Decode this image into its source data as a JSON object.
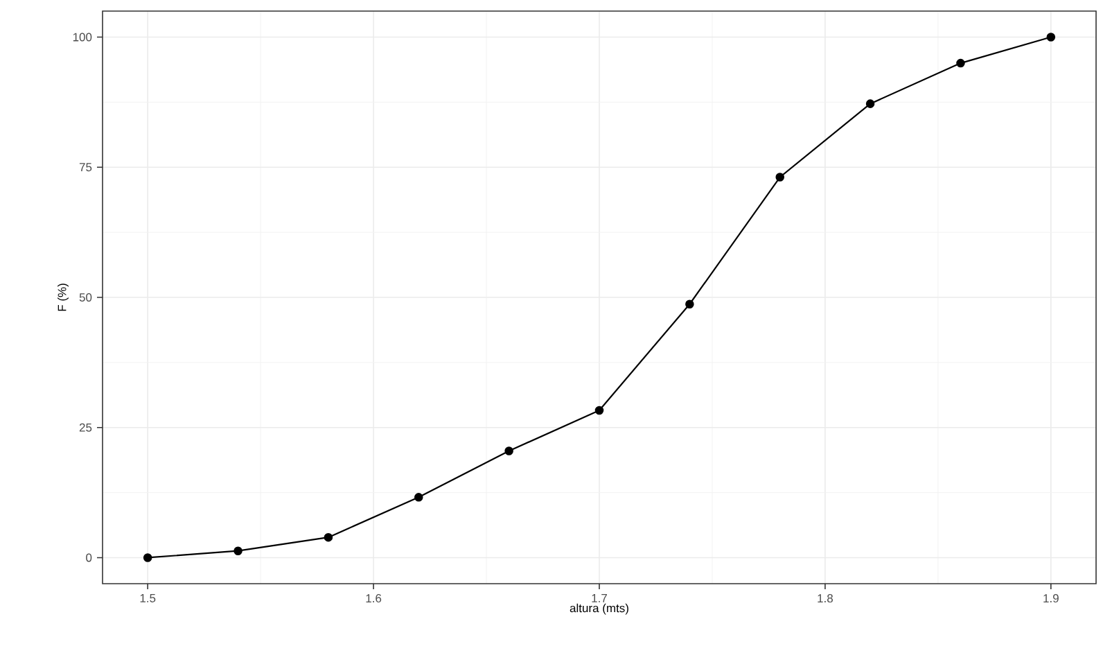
{
  "chart_data": {
    "type": "line",
    "xlabel": "altura (mts)",
    "ylabel": "F (%)",
    "x": [
      1.5,
      1.54,
      1.58,
      1.62,
      1.66,
      1.7,
      1.74,
      1.78,
      1.82,
      1.86,
      1.9
    ],
    "series": [
      {
        "color": "#000000",
        "values": [
          0,
          1.3,
          3.9,
          11.6,
          20.5,
          28.3,
          48.7,
          73.1,
          87.2,
          95.0,
          100
        ]
      }
    ],
    "xlim": [
      1.48,
      1.92
    ],
    "xticks": [
      1.5,
      1.6,
      1.7,
      1.8,
      1.9
    ],
    "ylim": [
      -5,
      105
    ],
    "yticks": [
      0,
      25,
      50,
      75,
      100
    ],
    "grid": true,
    "marker": "circle",
    "line_style": "solid"
  }
}
